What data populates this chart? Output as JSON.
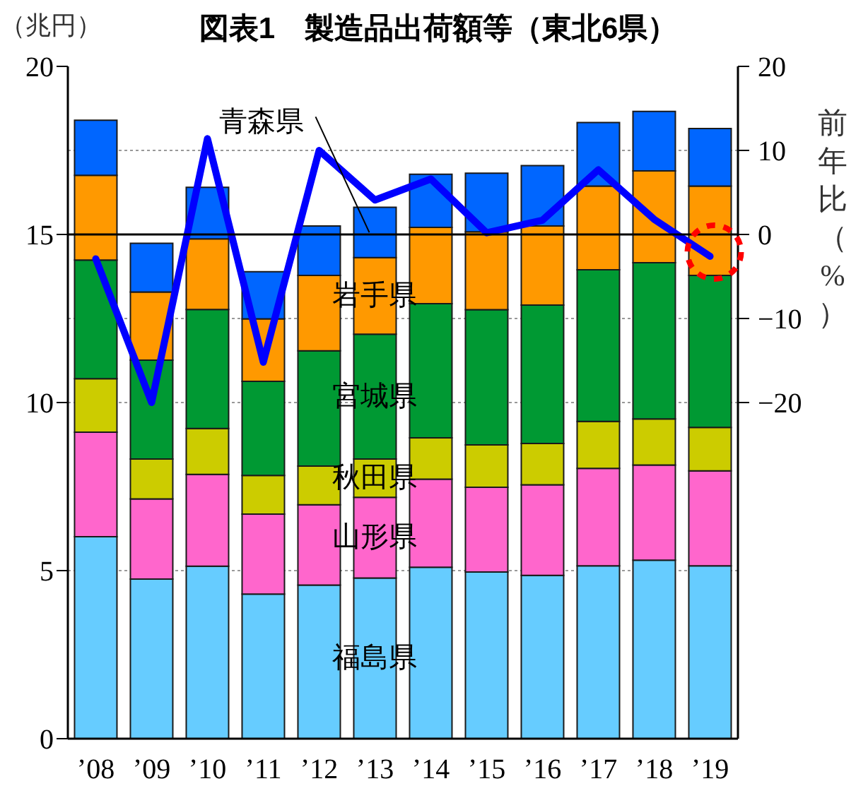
{
  "chart_data": {
    "type": "bar",
    "title": "図表1　製造品出荷額等（東北6県）",
    "ylabel": "（兆円）",
    "y2label": "前年比（%）",
    "categories": [
      "’08",
      "’09",
      "’10",
      "’11",
      "’12",
      "’13",
      "’14",
      "’15",
      "’16",
      "’17",
      "’18",
      "’19"
    ],
    "stacked": true,
    "series": [
      {
        "name": "福島県",
        "color": "#66ccff",
        "values": [
          6.01,
          4.75,
          5.13,
          4.3,
          4.57,
          4.78,
          5.1,
          4.96,
          4.86,
          5.14,
          5.31,
          5.14
        ]
      },
      {
        "name": "山形県",
        "color": "#ff66cc",
        "values": [
          3.11,
          2.38,
          2.73,
          2.38,
          2.39,
          2.4,
          2.62,
          2.52,
          2.69,
          2.9,
          2.83,
          2.83
        ]
      },
      {
        "name": "秋田県",
        "color": "#cccc00",
        "values": [
          1.59,
          1.19,
          1.37,
          1.15,
          1.15,
          1.14,
          1.23,
          1.26,
          1.23,
          1.4,
          1.37,
          1.29
        ]
      },
      {
        "name": "宮城県",
        "color": "#009933",
        "values": [
          3.53,
          2.94,
          3.54,
          2.8,
          3.43,
          3.71,
          3.99,
          4.02,
          4.12,
          4.51,
          4.65,
          4.52
        ]
      },
      {
        "name": "岩手県",
        "color": "#ff9900",
        "values": [
          2.52,
          2.03,
          2.1,
          1.86,
          2.24,
          2.28,
          2.27,
          2.32,
          2.35,
          2.49,
          2.73,
          2.66
        ]
      },
      {
        "name": "青森県",
        "color": "#0066ff",
        "values": [
          1.64,
          1.45,
          1.53,
          1.4,
          1.47,
          1.5,
          1.58,
          1.74,
          1.8,
          1.89,
          1.77,
          1.71
        ]
      },
      {
        "type": "line",
        "axis": "y2",
        "color": "#0000ff",
        "values": [
          -2.9,
          -20.0,
          11.4,
          -15.2,
          10.0,
          4.1,
          6.6,
          0.2,
          1.7,
          7.7,
          1.8,
          -2.6
        ]
      }
    ],
    "ylim": [
      0,
      20
    ],
    "yticks": [
      0,
      5,
      10,
      15,
      20
    ],
    "y2lim": [
      -60,
      20
    ],
    "y2ticks": [
      -20,
      -10,
      0,
      10,
      20
    ],
    "grid": "y",
    "marker": "none",
    "ref_lines": [
      {
        "axis": "y2",
        "value": 0,
        "color": "#000000"
      }
    ]
  }
}
